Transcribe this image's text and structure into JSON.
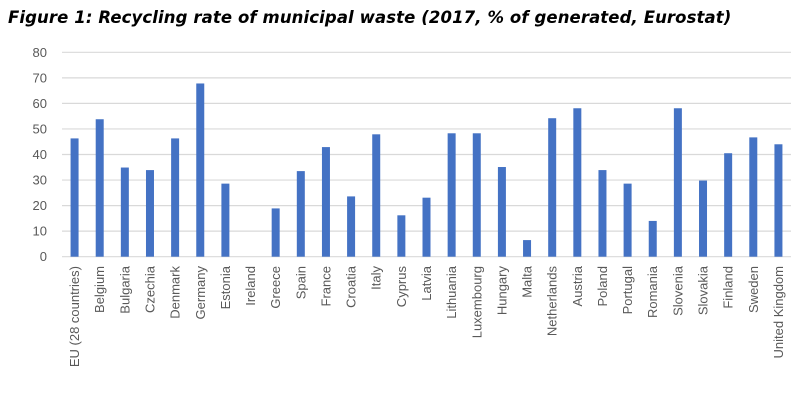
{
  "chart_data": {
    "type": "bar",
    "title": "Figure 1: Recycling rate of municipal waste (2017, % of generated, Eurostat)",
    "xlabel": "",
    "ylabel": "",
    "ylim": [
      0,
      80
    ],
    "yticks": [
      "0",
      "10",
      "20",
      "30",
      "40",
      "50",
      "60",
      "70",
      "80"
    ],
    "grid": true,
    "legend": "none",
    "bar_color": "#4472C4",
    "categories": [
      "EU (28 countries)",
      "Belgium",
      "Bulgaria",
      "Czechia",
      "Denmark",
      "Germany",
      "Estonia",
      "Ireland",
      "Greece",
      "Spain",
      "France",
      "Croatia",
      "Italy",
      "Cyprus",
      "Latvia",
      "Lithuania",
      "Luxembourg",
      "Hungary",
      "Malta",
      "Netherlands",
      "Austria",
      "Poland",
      "Portugal",
      "Romania",
      "Slovenia",
      "Slovakia",
      "Finland",
      "Sweden",
      "United Kingdom"
    ],
    "values": [
      46.3,
      53.8,
      34.9,
      33.9,
      46.3,
      67.8,
      28.6,
      null,
      18.9,
      33.5,
      42.9,
      23.6,
      47.9,
      16.2,
      23.1,
      48.3,
      48.3,
      35.1,
      6.5,
      54.2,
      58.1,
      33.9,
      28.6,
      14.0,
      58.1,
      29.8,
      40.5,
      46.7,
      44.0
    ]
  }
}
